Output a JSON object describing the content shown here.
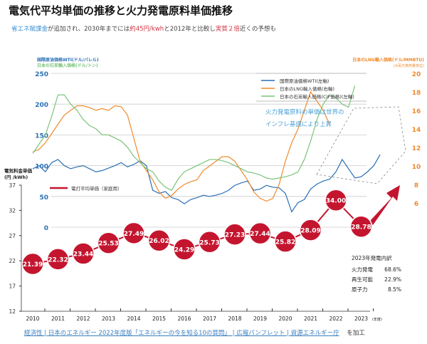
{
  "title": "電気代平均単価の推移と火力発電原料単価推移",
  "subtitle": {
    "part1": "省エネ賦課金",
    "part2": "が追加され、2030年までには",
    "part3": "約45円/kwh",
    "part4": "と2012年と比較し",
    "part5": "実質２倍",
    "part6": "近くの予想も"
  },
  "annotation": {
    "line1": "火力発電原料の単価は世界の",
    "line2": "インフレ基調により上昇"
  },
  "breakdown": {
    "title": "2023年発電内訳",
    "rows": [
      {
        "label": "火力発電",
        "value": "68.6%"
      },
      {
        "label": "再生可能",
        "value": "22.9%"
      },
      {
        "label": "原子力",
        "value": "8.5%"
      }
    ]
  },
  "source": {
    "link": "経済性 | 日本のエネルギー 2022年度版「エネルギーの今を知る10の質問」 | 広報パンフレット | 資源エネルギー庁",
    "suffix": "を加工"
  },
  "colors": {
    "wti": "#2a6fb5",
    "lng": "#f08a2c",
    "coal": "#7cc47a",
    "electric": "#c4152f",
    "annotation": "#4a9fd5"
  },
  "chart_data": {
    "type": "line",
    "xlabel_suffix": "(年度)",
    "x_ticks": [
      "2010",
      "2011",
      "2012",
      "2013",
      "2014",
      "2015",
      "2016",
      "2017",
      "2018",
      "2019",
      "2020",
      "2021",
      "2022",
      "2023"
    ],
    "axes": {
      "left": {
        "label1": "国際原油価格WTI(ドル/バレル)",
        "label2": "日本の石炭輸入価格(ドル/トン)",
        "ylim": [
          0,
          250
        ],
        "ticks": [
          "0",
          "50",
          "100",
          "150",
          "200",
          "250"
        ]
      },
      "right": {
        "label1": "日本のLNG輸入価格(ドル/MMBTU)",
        "label2": "(※百万英熱量単位)",
        "ylim": [
          6,
          20
        ],
        "ticks": [
          "6",
          "8",
          "10",
          "12",
          "14",
          "16",
          "18",
          "20"
        ]
      },
      "electric": {
        "label1": "電気料金単価",
        "label2": "(円 /kWh)",
        "ylim": [
          12,
          37
        ],
        "ticks": [
          "12",
          "17",
          "22",
          "27",
          "32",
          "37"
        ]
      }
    },
    "legend": [
      "国際原油価格WTI(左軸)",
      "日本のLNG輸入価格(右軸)",
      "日本の石炭輸入価格(CIF価格)(左軸)"
    ],
    "electric_legend": "電灯平均単価（家庭用）",
    "grid": true,
    "series": [
      {
        "name": "国際原油価格WTI(左軸)",
        "axis": "left",
        "x_start": 2010,
        "step": 0.25,
        "values": [
          95,
          100,
          90,
          105,
          110,
          100,
          95,
          98,
          100,
          95,
          90,
          92,
          96,
          100,
          105,
          98,
          102,
          108,
          100,
          60,
          55,
          58,
          48,
          45,
          38,
          45,
          48,
          52,
          50,
          52,
          55,
          60,
          68,
          72,
          75,
          60,
          62,
          68,
          65,
          64,
          55,
          25,
          40,
          45,
          62,
          70,
          75,
          78,
          90,
          110,
          95,
          80,
          82,
          90,
          100,
          118
        ]
      },
      {
        "name": "日本のLNG輸入価格(右軸)",
        "axis": "right",
        "x_start": 2010,
        "step": 0.25,
        "values": [
          11.5,
          11.8,
          12.5,
          13.5,
          14.5,
          15.5,
          16,
          16.5,
          16.5,
          16.3,
          16,
          16.2,
          16,
          16.5,
          16.4,
          15.5,
          13,
          10.5,
          9.5,
          8.5,
          7.2,
          6.5,
          6.8,
          7.5,
          8,
          8.3,
          8.5,
          9.5,
          10,
          10.5,
          11,
          11,
          10.5,
          9.5,
          8.5,
          7.2,
          6.5,
          6.2,
          6.5,
          8,
          10.5,
          12.5,
          14,
          16,
          18,
          17,
          16,
          14.5
        ]
      },
      {
        "name": "日本の石炭輸入価格(CIF価格)(左軸)",
        "axis": "left",
        "x_start": 2010,
        "step": 0.25,
        "values": [
          120,
          135,
          150,
          180,
          215,
          215,
          200,
          190,
          175,
          165,
          160,
          150,
          150,
          145,
          140,
          130,
          115,
          105,
          95,
          90,
          75,
          65,
          60,
          78,
          90,
          95,
          100,
          105,
          110,
          110,
          108,
          105,
          100,
          95,
          90,
          88,
          85,
          80,
          78,
          80,
          82,
          85,
          90,
          110,
          140,
          175,
          200,
          215,
          210,
          200,
          195,
          230
        ]
      },
      {
        "name": "電灯平均単価（家庭用）",
        "axis": "electric",
        "x": [
          2010,
          2011,
          2012,
          2013,
          2014,
          2015,
          2016,
          2017,
          2018,
          2019,
          2020,
          2021,
          2022,
          2023
        ],
        "values": [
          21.39,
          22.32,
          23.44,
          25.53,
          27.49,
          26.02,
          24.29,
          25.73,
          27.23,
          27.44,
          25.82,
          28.09,
          34.0,
          28.78
        ],
        "labels": [
          "21.39",
          "22.32",
          "23.44",
          "25.53",
          "27.49",
          "26.02",
          "24.29",
          "25.73",
          "27.23",
          "27.44",
          "25.82",
          "28.09",
          "34.00",
          "28.78"
        ]
      }
    ]
  }
}
